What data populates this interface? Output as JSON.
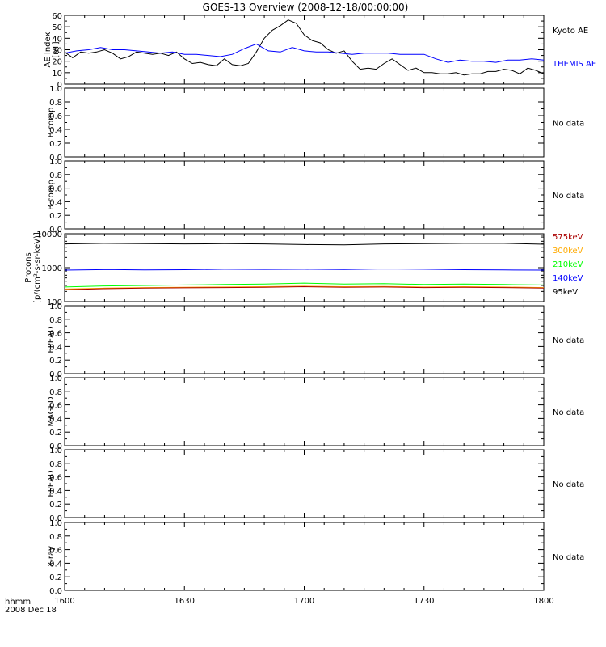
{
  "title": "GOES-13 Overview (2008-12-18/00:00:00)",
  "x_axis": {
    "ticks": [
      "1600",
      "1630",
      "1700",
      "1730",
      "1800"
    ],
    "tick_minutes": [
      0,
      30,
      60,
      90,
      120
    ],
    "label_line1": "hhmm",
    "label_line2": "2008 Dec 18"
  },
  "colors": {
    "black": "#000000",
    "blue": "#0000ff",
    "green": "#00ff00",
    "orange": "#ffaa00",
    "darkred": "#aa0000"
  },
  "chart_data": [
    {
      "type": "line",
      "ylabel": "AE Index [nT]",
      "ylim": [
        0,
        60
      ],
      "y_ticks": [
        "0",
        "10",
        "20",
        "30",
        "40",
        "50",
        "60"
      ],
      "y_tick_values": [
        0,
        10,
        20,
        30,
        40,
        50,
        60
      ],
      "series": [
        {
          "name": "Kyoto AE",
          "color": "#000000",
          "x": [
            0,
            2,
            4,
            6,
            8,
            10,
            12,
            14,
            16,
            18,
            20,
            22,
            24,
            26,
            28,
            30,
            32,
            34,
            36,
            38,
            40,
            42,
            44,
            46,
            48,
            50,
            52,
            54,
            56,
            58,
            60,
            62,
            64,
            66,
            68,
            70,
            72,
            74,
            76,
            78,
            80,
            82,
            84,
            86,
            88,
            90,
            92,
            94,
            96,
            98,
            100,
            102,
            104,
            106,
            108,
            110,
            112,
            114,
            116,
            118,
            120
          ],
          "y": [
            28,
            23,
            28,
            27,
            28,
            30,
            27,
            22,
            24,
            28,
            27,
            26,
            27,
            25,
            28,
            22,
            18,
            19,
            17,
            16,
            22,
            17,
            16,
            18,
            28,
            40,
            47,
            51,
            56,
            53,
            43,
            38,
            36,
            30,
            27,
            29,
            20,
            13,
            14,
            13,
            18,
            22,
            17,
            12,
            14,
            10,
            10,
            9,
            9,
            10,
            8,
            9,
            9,
            11,
            11,
            13,
            12,
            9,
            14,
            12,
            9
          ]
        },
        {
          "name": "THEMIS AE",
          "color": "#0000ff",
          "x": [
            0,
            3,
            6,
            9,
            12,
            15,
            18,
            21,
            24,
            27,
            30,
            33,
            36,
            39,
            42,
            45,
            48,
            51,
            54,
            57,
            60,
            63,
            66,
            69,
            72,
            75,
            78,
            81,
            84,
            87,
            90,
            93,
            96,
            99,
            102,
            105,
            108,
            111,
            114,
            117,
            120
          ],
          "y": [
            27,
            29,
            30,
            32,
            30,
            30,
            29,
            28,
            27,
            28,
            26,
            26,
            25,
            24,
            26,
            31,
            35,
            29,
            28,
            32,
            29,
            28,
            28,
            27,
            26,
            27,
            27,
            27,
            26,
            26,
            26,
            22,
            19,
            21,
            20,
            20,
            19,
            21,
            21,
            22,
            21
          ]
        }
      ],
      "legend": [
        "Kyoto AE",
        "THEMIS AE"
      ]
    },
    {
      "type": "line",
      "ylabel": "B comp",
      "ylim": [
        0,
        1
      ],
      "y_ticks": [
        "0.0",
        "0.2",
        "0.4",
        "0.6",
        "0.8",
        "1.0"
      ],
      "y_tick_values": [
        0,
        0.2,
        0.4,
        0.6,
        0.8,
        1.0
      ],
      "series": [],
      "status": "No data"
    },
    {
      "type": "line",
      "ylabel": "B comp",
      "ylim": [
        0,
        1
      ],
      "y_ticks": [
        "0.0",
        "0.2",
        "0.4",
        "0.6",
        "0.8",
        "1.0"
      ],
      "y_tick_values": [
        0,
        0.2,
        0.4,
        0.6,
        0.8,
        1.0
      ],
      "series": [],
      "status": "No data"
    },
    {
      "type": "line",
      "ylabel": "Protons [p/(cm2-s-sr-keV)]",
      "yscale": "log",
      "ylim": [
        100,
        10000
      ],
      "y_ticks": [
        "100",
        "1000",
        "10000"
      ],
      "y_tick_values": [
        100,
        1000,
        10000
      ],
      "series": [
        {
          "name": "95keV",
          "color": "#000000",
          "x": [
            0,
            10,
            20,
            30,
            40,
            50,
            60,
            70,
            80,
            90,
            100,
            110,
            120
          ],
          "y": [
            5000,
            5200,
            5100,
            5000,
            5100,
            5000,
            4800,
            4700,
            5000,
            5100,
            5200,
            5200,
            4900
          ]
        },
        {
          "name": "140keV",
          "color": "#0000ff",
          "x": [
            0,
            10,
            20,
            30,
            40,
            50,
            60,
            70,
            80,
            90,
            100,
            110,
            120
          ],
          "y": [
            850,
            880,
            860,
            870,
            900,
            890,
            900,
            880,
            920,
            900,
            870,
            860,
            850
          ]
        },
        {
          "name": "210keV",
          "color": "#00ff00",
          "x": [
            0,
            10,
            20,
            30,
            40,
            50,
            60,
            70,
            80,
            90,
            100,
            110,
            120
          ],
          "y": [
            270,
            290,
            300,
            310,
            320,
            330,
            350,
            330,
            340,
            320,
            330,
            320,
            310
          ]
        },
        {
          "name": "300keV",
          "color": "#ffaa00",
          "x": [
            0,
            10,
            20,
            30,
            40,
            50,
            60,
            70,
            80,
            90,
            100,
            110,
            120
          ],
          "y": [
            235,
            250,
            260,
            265,
            270,
            275,
            285,
            275,
            280,
            270,
            275,
            270,
            260
          ]
        },
        {
          "name": "575keV",
          "color": "#aa0000",
          "x": [
            0,
            10,
            20,
            30,
            40,
            50,
            60,
            70,
            80,
            90,
            100,
            110,
            120
          ],
          "y": [
            225,
            240,
            250,
            255,
            260,
            265,
            275,
            265,
            270,
            260,
            265,
            260,
            250
          ]
        }
      ],
      "legend": [
        "575keV",
        "300keV",
        "210keV",
        "140keV",
        "95keV"
      ]
    },
    {
      "type": "line",
      "ylabel": "EPEAD",
      "ylim": [
        0,
        1
      ],
      "y_ticks": [
        "0.0",
        "0.2",
        "0.4",
        "0.6",
        "0.8",
        "1.0"
      ],
      "y_tick_values": [
        0,
        0.2,
        0.4,
        0.6,
        0.8,
        1.0
      ],
      "series": [],
      "status": "No data"
    },
    {
      "type": "line",
      "ylabel": "MAGED",
      "ylim": [
        0,
        1
      ],
      "y_ticks": [
        "0.0",
        "0.2",
        "0.4",
        "0.6",
        "0.8",
        "1.0"
      ],
      "y_tick_values": [
        0,
        0.2,
        0.4,
        0.6,
        0.8,
        1.0
      ],
      "series": [],
      "status": "No data"
    },
    {
      "type": "line",
      "ylabel": "EPEAD",
      "ylim": [
        0,
        1
      ],
      "y_ticks": [
        "0.0",
        "0.2",
        "0.4",
        "0.6",
        "0.8",
        "1.0"
      ],
      "y_tick_values": [
        0,
        0.2,
        0.4,
        0.6,
        0.8,
        1.0
      ],
      "series": [],
      "status": "No data"
    },
    {
      "type": "line",
      "ylabel": "X-ray",
      "ylim": [
        0,
        1
      ],
      "y_ticks": [
        "0.0",
        "0.2",
        "0.4",
        "0.6",
        "0.8",
        "1.0"
      ],
      "y_tick_values": [
        0,
        0.2,
        0.4,
        0.6,
        0.8,
        1.0
      ],
      "series": [],
      "status": "No data"
    }
  ]
}
